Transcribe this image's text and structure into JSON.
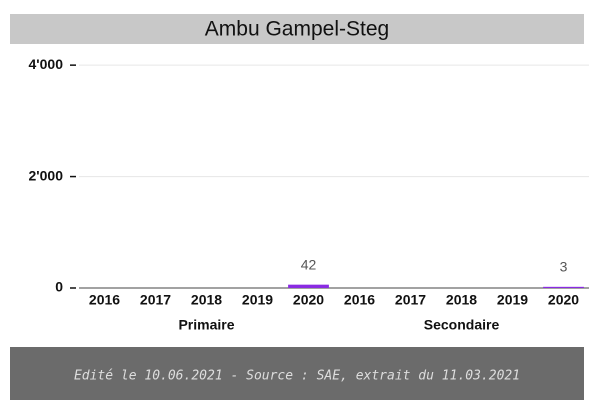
{
  "chart_data": {
    "type": "bar",
    "title": "Ambu Gampel-Steg",
    "categories": [
      "2016",
      "2017",
      "2018",
      "2019",
      "2020",
      "2016",
      "2017",
      "2018",
      "2019",
      "2020"
    ],
    "category_groups": [
      "Primaire",
      "Secondaire"
    ],
    "values": [
      null,
      null,
      null,
      null,
      42,
      null,
      null,
      null,
      null,
      3
    ],
    "color": "#8a2be2",
    "ylim": [
      0,
      4200
    ],
    "yticks": [
      0,
      {
        "value": 2000,
        "label": "2'000"
      },
      {
        "value": 4000,
        "label": "4'000"
      }
    ],
    "grid": true
  },
  "footer": "Edité le 10.06.2021 - Source : SAE, extrait du 11.03.2021"
}
